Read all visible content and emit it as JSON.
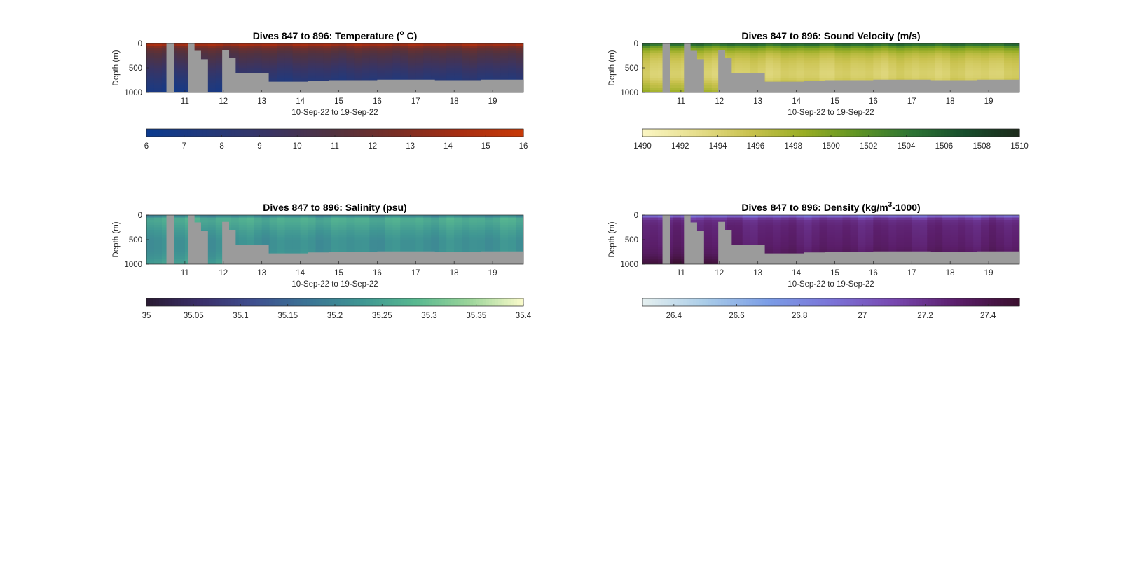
{
  "figure": {
    "background": "#ffffff",
    "land_color": "#9b9b9b",
    "bathymetry_depth": [
      [
        10.0,
        1000
      ],
      [
        10.52,
        1000
      ],
      [
        10.52,
        0
      ],
      [
        10.72,
        0
      ],
      [
        10.72,
        1000
      ],
      [
        11.08,
        1000
      ],
      [
        11.08,
        0
      ],
      [
        11.25,
        0
      ],
      [
        11.25,
        150
      ],
      [
        11.42,
        150
      ],
      [
        11.42,
        320
      ],
      [
        11.6,
        320
      ],
      [
        11.6,
        1000
      ],
      [
        11.97,
        1000
      ],
      [
        11.97,
        140
      ],
      [
        12.15,
        140
      ],
      [
        12.15,
        300
      ],
      [
        12.32,
        300
      ],
      [
        12.32,
        600
      ],
      [
        13.18,
        600
      ],
      [
        13.18,
        780
      ],
      [
        14.2,
        780
      ],
      [
        14.2,
        760
      ],
      [
        14.75,
        760
      ],
      [
        14.75,
        750
      ],
      [
        16.0,
        750
      ],
      [
        16.0,
        740
      ],
      [
        17.5,
        740
      ],
      [
        17.5,
        750
      ],
      [
        18.7,
        750
      ],
      [
        18.7,
        740
      ],
      [
        19.8,
        740
      ],
      [
        19.8,
        1000
      ]
    ]
  },
  "chart_data": [
    {
      "type": "heatmap",
      "id": "temperature",
      "title_prefix": "Dives 847 to 896: Temperature (",
      "title_super": "o",
      "title_suffix": " C)",
      "ylabel": "Depth (m)",
      "xlabel": "10-Sep-22 to 19-Sep-22",
      "xlim": [
        10.0,
        19.8
      ],
      "ylim": [
        0,
        1000
      ],
      "y_reversed": true,
      "x_ticks": [
        "11",
        "12",
        "13",
        "14",
        "15",
        "16",
        "17",
        "18",
        "19"
      ],
      "y_ticks": [
        "0",
        "500",
        "1000"
      ],
      "color_range": [
        6,
        16
      ],
      "colorbar_ticks": [
        "6",
        "7",
        "8",
        "9",
        "10",
        "11",
        "12",
        "13",
        "14",
        "15",
        "16"
      ],
      "colormap": [
        "#0b3a8f",
        "#23397a",
        "#3a3462",
        "#52323f",
        "#7a2e24",
        "#a82e12",
        "#c83a08"
      ],
      "nan_color": "#9b9b9b",
      "profile_depth": [
        0,
        50,
        100,
        200,
        300,
        400,
        500,
        600,
        700,
        800,
        900,
        1000
      ],
      "profile_values": [
        15.0,
        13.2,
        12.0,
        11.0,
        10.4,
        9.8,
        9.2,
        8.6,
        8.1,
        7.6,
        7.2,
        6.8
      ]
    },
    {
      "type": "heatmap",
      "id": "sound-velocity",
      "title_prefix": "Dives 847 to 896: Sound Velocity (m/s)",
      "title_super": "",
      "title_suffix": "",
      "ylabel": "Depth (m)",
      "xlabel": "10-Sep-22 to 19-Sep-22",
      "xlim": [
        10.0,
        19.8
      ],
      "ylim": [
        0,
        1000
      ],
      "y_reversed": true,
      "x_ticks": [
        "11",
        "12",
        "13",
        "14",
        "15",
        "16",
        "17",
        "18",
        "19"
      ],
      "y_ticks": [
        "0",
        "500",
        "1000"
      ],
      "color_range": [
        1490,
        1510
      ],
      "colorbar_ticks": [
        "1490",
        "1492",
        "1494",
        "1496",
        "1498",
        "1500",
        "1502",
        "1504",
        "1506",
        "1508",
        "1510"
      ],
      "colormap": [
        "#fbf6c4",
        "#e6de8c",
        "#c9c24e",
        "#98ad25",
        "#5f9424",
        "#2d7434",
        "#174d2c",
        "#1d2a1a"
      ],
      "nan_color": "#9b9b9b",
      "profile_depth": [
        0,
        30,
        60,
        100,
        200,
        300,
        400,
        500,
        600,
        700,
        800,
        900,
        1000
      ],
      "profile_values": [
        1506.5,
        1504.0,
        1502.0,
        1500.0,
        1497.0,
        1495.8,
        1495.0,
        1494.6,
        1494.2,
        1494.5,
        1496.0,
        1497.0,
        1498.5
      ]
    },
    {
      "type": "heatmap",
      "id": "salinity",
      "title_prefix": "Dives 847 to 896: Salinity (psu)",
      "title_super": "",
      "title_suffix": "",
      "ylabel": "Depth (m)",
      "xlabel": "10-Sep-22 to 19-Sep-22",
      "xlim": [
        10.0,
        19.8
      ],
      "ylim": [
        0,
        1000
      ],
      "y_reversed": true,
      "x_ticks": [
        "11",
        "12",
        "13",
        "14",
        "15",
        "16",
        "17",
        "18",
        "19"
      ],
      "y_ticks": [
        "0",
        "500",
        "1000"
      ],
      "color_range": [
        35.0,
        35.4
      ],
      "colorbar_ticks": [
        "35",
        "35.05",
        "35.1",
        "35.15",
        "35.2",
        "35.25",
        "35.3",
        "35.35",
        "35.4"
      ],
      "colormap": [
        "#2a1a32",
        "#3b2f6a",
        "#3e4f8f",
        "#3b7495",
        "#3f9693",
        "#58b890",
        "#9bd59a",
        "#fbfbcb"
      ],
      "nan_color": "#9b9b9b",
      "profile_depth": [
        0,
        30,
        80,
        150,
        300,
        500,
        700,
        850,
        1000
      ],
      "profile_values": [
        35.16,
        35.22,
        35.27,
        35.26,
        35.24,
        35.22,
        35.22,
        35.23,
        35.25
      ]
    },
    {
      "type": "heatmap",
      "id": "density",
      "title_prefix": "Dives 847 to 896: Density (kg/m",
      "title_super": "3",
      "title_suffix": "-1000)",
      "ylabel": "Depth (m)",
      "xlabel": "10-Sep-22 to 19-Sep-22",
      "xlim": [
        10.0,
        19.8
      ],
      "ylim": [
        0,
        1000
      ],
      "y_reversed": true,
      "x_ticks": [
        "11",
        "12",
        "13",
        "14",
        "15",
        "16",
        "17",
        "18",
        "19"
      ],
      "y_ticks": [
        "0",
        "500",
        "1000"
      ],
      "color_range": [
        26.3,
        27.5
      ],
      "colorbar_ticks": [
        "26.4",
        "26.6",
        "26.8",
        "27",
        "27.2",
        "27.4"
      ],
      "colormap": [
        "#e6f0f0",
        "#a9cce8",
        "#7b9de6",
        "#7b74d8",
        "#7848b0",
        "#5b1e6b",
        "#3a0f2d"
      ],
      "nan_color": "#9b9b9b",
      "profile_depth": [
        0,
        25,
        60,
        100,
        200,
        400,
        600,
        800,
        900,
        1000
      ],
      "profile_values": [
        26.6,
        26.95,
        27.15,
        27.22,
        27.26,
        27.28,
        27.3,
        27.34,
        27.4,
        27.45
      ]
    }
  ]
}
